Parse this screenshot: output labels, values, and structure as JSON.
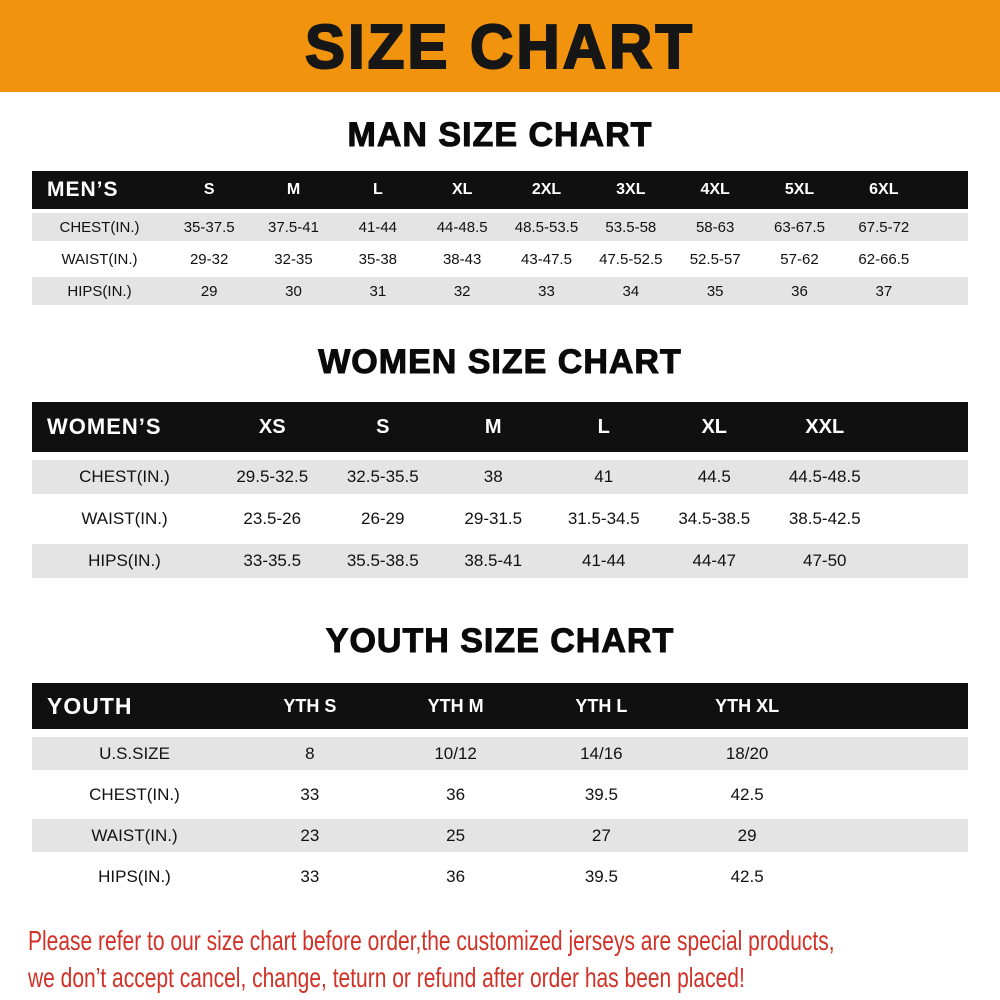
{
  "banner": {
    "title": "SIZE CHART"
  },
  "chart_data": [
    {
      "type": "table",
      "title": "MAN SIZE CHART",
      "columns": [
        "MEN’S",
        "S",
        "M",
        "L",
        "XL",
        "2XL",
        "3XL",
        "4XL",
        "5XL",
        "6XL"
      ],
      "rows": [
        [
          "CHEST(IN.)",
          "35-37.5",
          "37.5-41",
          "41-44",
          "44-48.5",
          "48.5-53.5",
          "53.5-58",
          "58-63",
          "63-67.5",
          "67.5-72"
        ],
        [
          "WAIST(IN.)",
          "29-32",
          "32-35",
          "35-38",
          "38-43",
          "43-47.5",
          "47.5-52.5",
          "52.5-57",
          "57-62",
          "62-66.5"
        ],
        [
          "HIPS(IN.)",
          "29",
          "30",
          "31",
          "32",
          "33",
          "34",
          "35",
          "36",
          "37"
        ]
      ]
    },
    {
      "type": "table",
      "title": "WOMEN SIZE CHART",
      "columns": [
        "WOMEN’S",
        "XS",
        "S",
        "M",
        "L",
        "XL",
        "XXL"
      ],
      "rows": [
        [
          "CHEST(IN.)",
          "29.5-32.5",
          "32.5-35.5",
          "38",
          "41",
          "44.5",
          "44.5-48.5"
        ],
        [
          "WAIST(IN.)",
          "23.5-26",
          "26-29",
          "29-31.5",
          "31.5-34.5",
          "34.5-38.5",
          "38.5-42.5"
        ],
        [
          "HIPS(IN.)",
          "33-35.5",
          "35.5-38.5",
          "38.5-41",
          "41-44",
          "44-47",
          "47-50"
        ]
      ]
    },
    {
      "type": "table",
      "title": "YOUTH SIZE CHART",
      "columns": [
        "YOUTH",
        "YTH S",
        "YTH M",
        "YTH L",
        "YTH XL"
      ],
      "rows": [
        [
          "U.S.SIZE",
          "8",
          "10/12",
          "14/16",
          "18/20"
        ],
        [
          "CHEST(IN.)",
          "33",
          "36",
          "39.5",
          "42.5"
        ],
        [
          "WAIST(IN.)",
          "23",
          "25",
          "27",
          "29"
        ],
        [
          "HIPS(IN.)",
          "33",
          "36",
          "39.5",
          "42.5"
        ]
      ]
    }
  ],
  "footer": {
    "lines": [
      "Please refer to our size chart before order,the customized jerseys are special products,",
      "we don’t accept cancel, change, teturn or refund after order has been placed!"
    ]
  },
  "colors": {
    "banner_bg": "#f2930d",
    "table_header_bg": "#101010",
    "row_stripe": "#e4e4e4",
    "footer_text": "#d03228"
  }
}
